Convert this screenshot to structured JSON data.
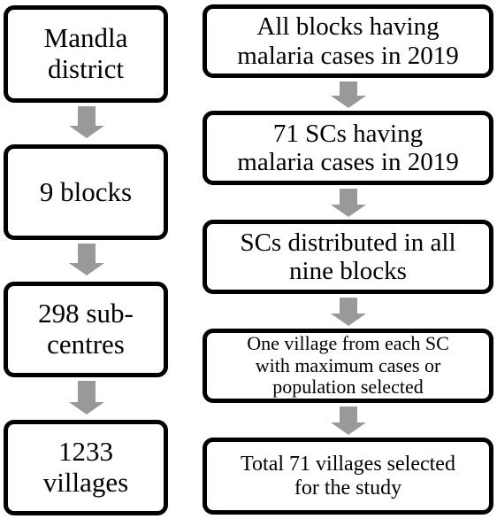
{
  "left_column": [
    {
      "text": "Mandla\ndistrict"
    },
    {
      "text": "9 blocks"
    },
    {
      "text": "298 sub-\ncentres"
    },
    {
      "text": "1233\nvillages"
    }
  ],
  "right_column": [
    {
      "text": "All blocks having\nmalaria cases in 2019"
    },
    {
      "text": "71 SCs having\nmalaria cases in 2019"
    },
    {
      "text": "SCs distributed in all\nnine blocks"
    },
    {
      "text": "One village from each SC\nwith maximum cases or\npopulation selected"
    },
    {
      "text": "Total 71 villages selected\nfor the study"
    }
  ],
  "colors": {
    "arrow": "#999999",
    "border": "#000000"
  }
}
